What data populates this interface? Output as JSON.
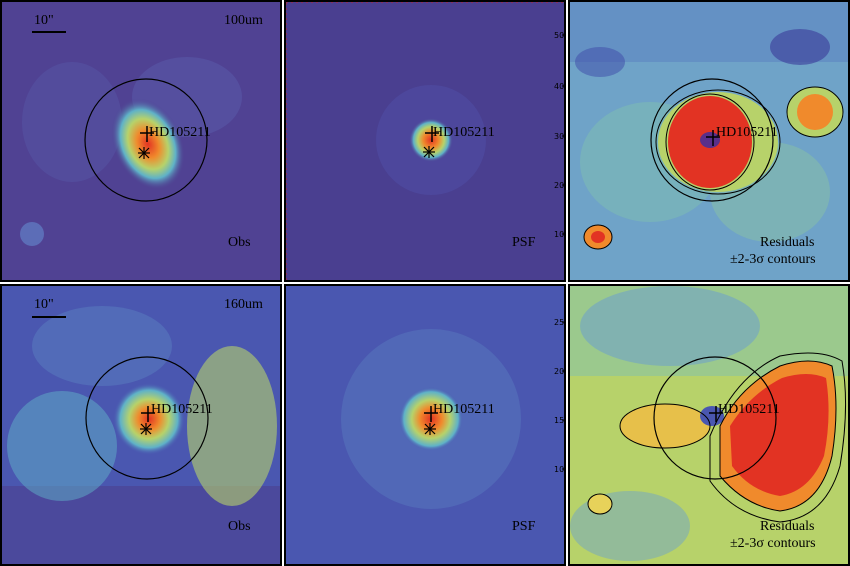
{
  "panels": [
    {
      "id": "p100-obs",
      "band_label": "100um",
      "panel_label": "Obs",
      "target": "HD105211",
      "scale_label": "10\""
    },
    {
      "id": "p100-psf",
      "panel_label": "PSF",
      "target": "HD105211",
      "y_ticks": [
        "10",
        "20",
        "30",
        "40",
        "50"
      ]
    },
    {
      "id": "p100-res",
      "panel_label": "Residuals",
      "contour_label": "±2-3σ contours",
      "target": "HD105211"
    },
    {
      "id": "p160-obs",
      "band_label": "160um",
      "panel_label": "Obs",
      "target": "HD105211",
      "scale_label": "10\""
    },
    {
      "id": "p160-psf",
      "panel_label": "PSF",
      "target": "HD105211",
      "y_ticks": [
        "10",
        "15",
        "20",
        "25"
      ]
    },
    {
      "id": "p160-res",
      "panel_label": "Residuals",
      "contour_label": "±2-3σ contours",
      "target": "HD105211"
    }
  ],
  "colors": {
    "bg_purple": "#4d3f8f",
    "bg_blue": "#4a57b0",
    "mid_cyan": "#5fb2c8",
    "mid_green": "#b7d26a",
    "hot_orange": "#f08a2c",
    "hot_red": "#e23323"
  }
}
